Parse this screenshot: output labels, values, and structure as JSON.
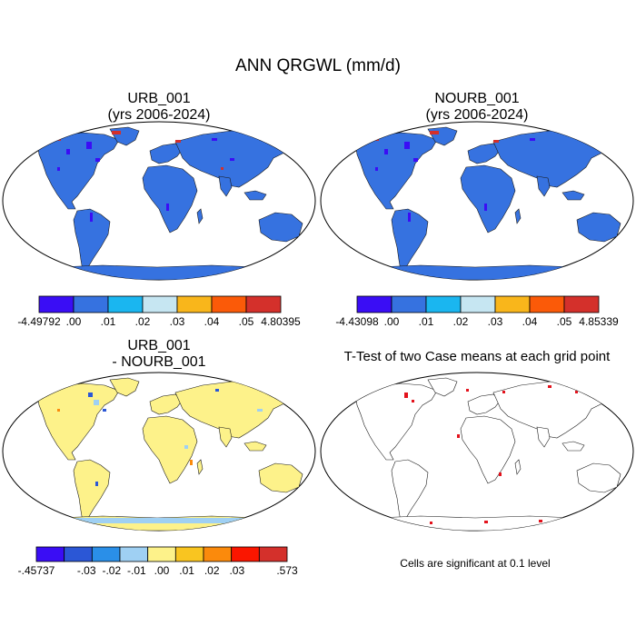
{
  "figure": {
    "title": "ANN QRGWL (mm/d)"
  },
  "panels": {
    "top_left": {
      "title_line1": "URB_001",
      "title_line2": "(yrs 2006-2024)"
    },
    "top_right": {
      "title_line1": "NOURB_001",
      "title_line2": "(yrs 2006-2024)"
    },
    "bottom_left": {
      "title_line1": "URB_001",
      "title_line2": "- NOURB_001"
    },
    "bottom_right": {
      "title_line1": "T-Test of two Case means at each grid point",
      "note": "Cells are significant at 0.1 level"
    }
  },
  "colorbars": {
    "top_left": {
      "colors": [
        "#3a0df5",
        "#3672e0",
        "#1ab6f0",
        "#c6e6f2",
        "#f9b61b",
        "#fb5a08",
        "#d4302b"
      ],
      "labels": [
        "-4.49792",
        ".00",
        ".01",
        ".02",
        ".03",
        ".04",
        ".05",
        "4.80395"
      ]
    },
    "top_right": {
      "colors": [
        "#3a0df5",
        "#3672e0",
        "#1ab6f0",
        "#c6e6f2",
        "#f9b61b",
        "#fb5a08",
        "#d4302b"
      ],
      "labels": [
        "-4.43098",
        ".00",
        ".01",
        ".02",
        ".03",
        ".04",
        ".05",
        "4.85339"
      ]
    },
    "bottom_left": {
      "colors": [
        "#3a0df5",
        "#2b57d6",
        "#2a8fe8",
        "#9fd0f3",
        "#fdf28a",
        "#f9c520",
        "#fb8a0c",
        "#fa1600",
        "#d4302b"
      ],
      "labels": [
        "-.45737",
        "",
        "-.03",
        "-.02",
        "-.01",
        ".00",
        ".01",
        ".02",
        ".03",
        "",
        ".573"
      ]
    }
  },
  "map_colors": {
    "ocean": "#ffffff",
    "land_top": "#3672e0",
    "land_diff": "#fdf28a",
    "land_ttest": "#ffffff",
    "significant": "#e3121c"
  }
}
